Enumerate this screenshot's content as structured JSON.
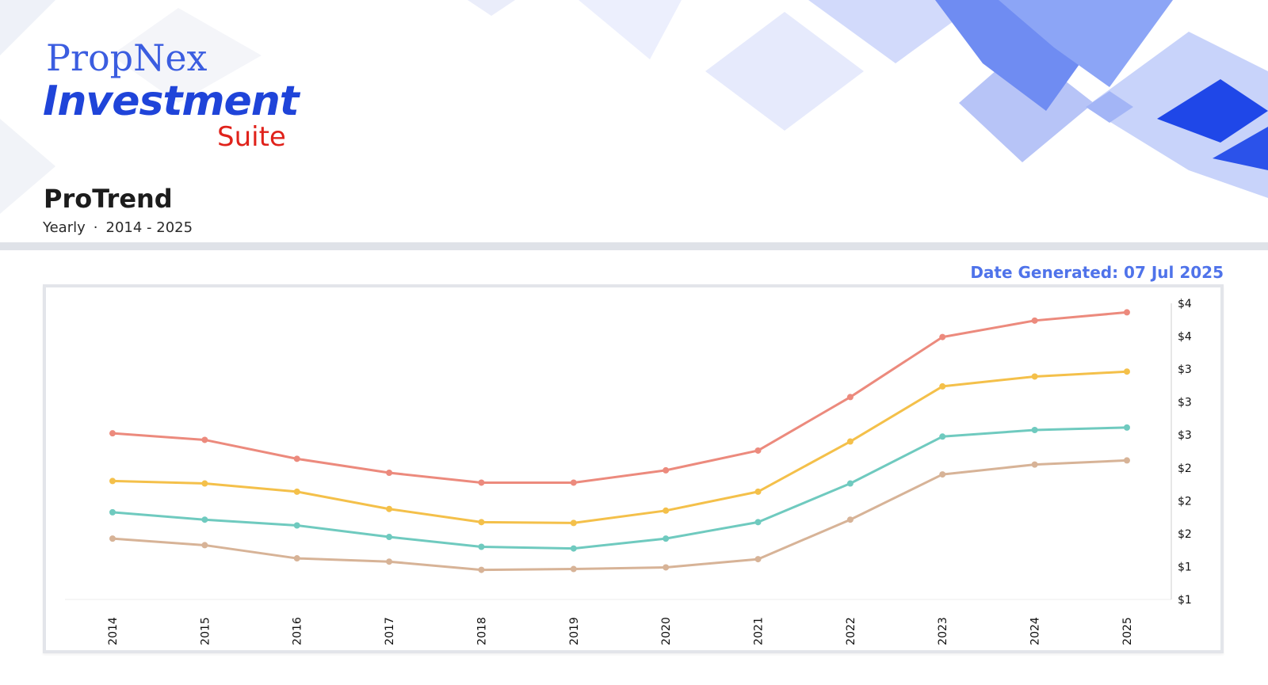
{
  "brand": {
    "line1": "PropNex",
    "line2": "Investment",
    "line3": "Suite"
  },
  "report": {
    "title": "ProTrend",
    "frequency": "Yearly",
    "separator": "·",
    "period": "2014 - 2025",
    "date_generated": "Date Generated: 07 Jul 2025"
  },
  "colors": {
    "accent": "#4f73ea",
    "brand_blue": "#1f44d9",
    "brand_red": "#e0221b"
  },
  "chart_data": {
    "type": "line",
    "x": [
      "2014",
      "2015",
      "2016",
      "2017",
      "2018",
      "2019",
      "2020",
      "2021",
      "2022",
      "2023",
      "2024",
      "2025"
    ],
    "y_tick_labels": [
      "$4",
      "$4",
      "$3",
      "$3",
      "$3",
      "$2",
      "$2",
      "$2",
      "$1",
      "$1"
    ],
    "ylim": [
      0.97,
      4.57
    ],
    "y_axis_position": "right",
    "grid": false,
    "legend": "none",
    "series": [
      {
        "color": "#ec8a7d",
        "values": [
          2.99,
          2.91,
          2.68,
          2.51,
          2.39,
          2.39,
          2.54,
          2.78,
          3.43,
          4.16,
          4.36,
          4.46
        ]
      },
      {
        "color": "#f4c04a",
        "values": [
          2.41,
          2.38,
          2.28,
          2.07,
          1.91,
          1.9,
          2.05,
          2.28,
          2.89,
          3.56,
          3.68,
          3.74
        ]
      },
      {
        "color": "#6fcabf",
        "values": [
          2.03,
          1.94,
          1.87,
          1.73,
          1.61,
          1.59,
          1.71,
          1.91,
          2.38,
          2.95,
          3.03,
          3.06
        ]
      },
      {
        "color": "#d7b397",
        "values": [
          1.71,
          1.63,
          1.47,
          1.43,
          1.33,
          1.34,
          1.36,
          1.46,
          1.94,
          2.49,
          2.61,
          2.66
        ]
      }
    ]
  }
}
